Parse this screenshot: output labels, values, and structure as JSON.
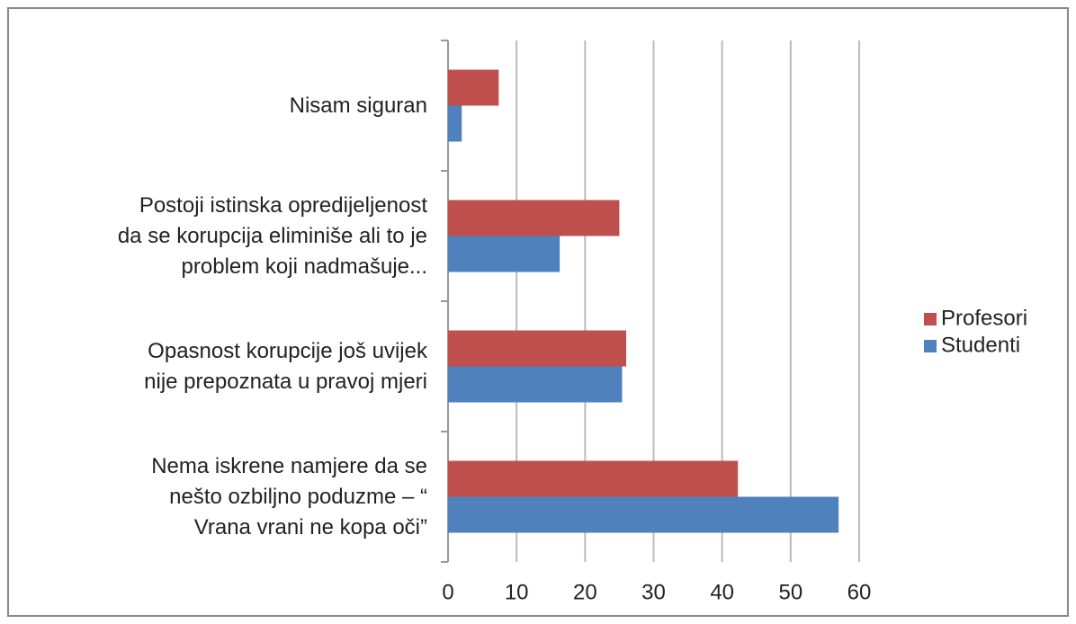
{
  "chart_data": {
    "type": "bar",
    "orientation": "horizontal",
    "categories": [
      "Nisam siguran",
      "Postoji istinska opredijeljenost\nda se korupcija eliminiše ali to je\nproblem koji nadmašuje...",
      "Opasnost korupcije još uvijek\nnije prepoznata u pravoj mjeri",
      "Nema iskrene namjere da se\nnešto ozbiljno poduzme – “\nVrana vrani ne kopa oči”"
    ],
    "series": [
      {
        "name": "Profesori",
        "color": "#c0504d",
        "values": [
          7.4,
          25,
          26,
          42.3
        ]
      },
      {
        "name": "Studenti",
        "color": "#4f81bd",
        "values": [
          2,
          16.3,
          25.4,
          57
        ]
      }
    ],
    "xlim": [
      0,
      60
    ],
    "xticks": [
      0,
      10,
      20,
      30,
      40,
      50,
      60
    ],
    "grid": true,
    "legend": "right"
  }
}
